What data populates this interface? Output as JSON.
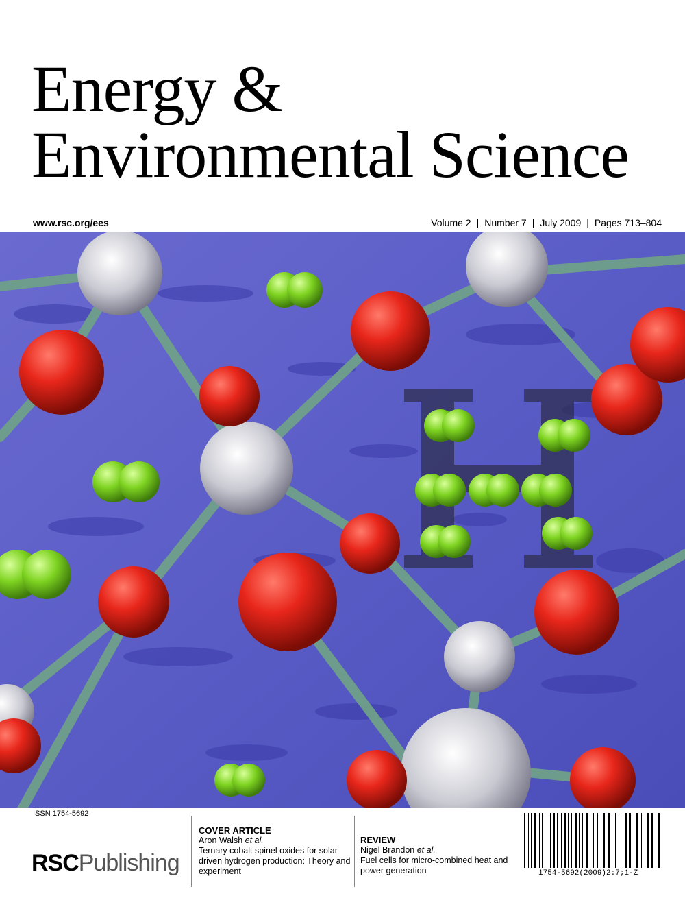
{
  "journal": {
    "title_line1": "Energy & ",
    "title_line2": "Environmental Science",
    "url": "www.rsc.org/ees",
    "volume": "Volume 2",
    "number": "Number 7",
    "date": "July 2009",
    "pages": "Pages 713–804",
    "issn": "ISSN 1754-5692"
  },
  "cover_article": {
    "kind": "COVER ARTICLE",
    "author": "Aron Walsh",
    "etal": " et al.",
    "title": "Ternary cobalt spinel oxides for solar driven hydrogen production: Theory and experiment"
  },
  "review": {
    "kind": "REVIEW",
    "author": "Nigel Brandon",
    "etal": " et al.",
    "title": "Fuel cells for micro-combined heat and power generation"
  },
  "publisher": {
    "name_bold": "RSC",
    "name_light": "Publishing"
  },
  "barcode_text": "1754-5692(2009)2:7;1-Z",
  "colors": {
    "background_blue": "#5a5cc6",
    "oxygen_red": "#e8261b",
    "hydrogen_green": "#7ed321",
    "metal_silver": "#d9d9de",
    "bond_green": "#6fa08a"
  }
}
